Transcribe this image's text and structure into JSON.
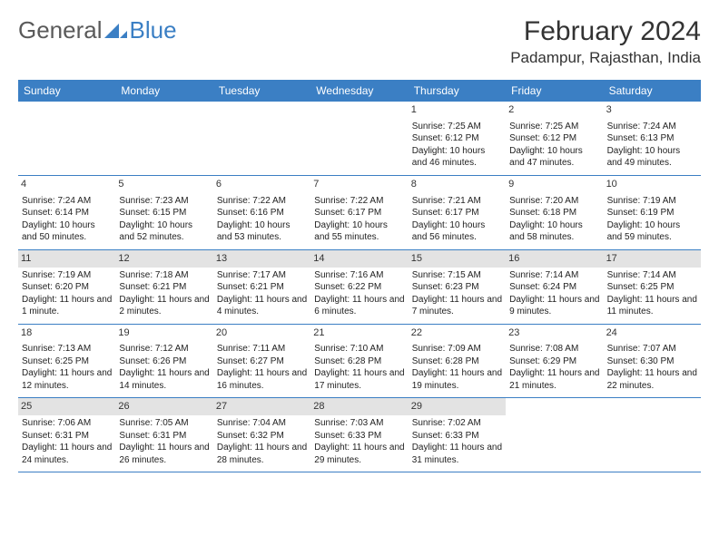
{
  "colors": {
    "header_bg": "#3b7fc4",
    "header_text": "#ffffff",
    "shaded_daynum_bg": "#e3e3e3",
    "border": "#3b7fc4",
    "body_text": "#222222",
    "logo_gray": "#5a5a5a",
    "logo_blue": "#3b7fc4"
  },
  "logo": {
    "general": "General",
    "blue": "Blue"
  },
  "title": "February 2024",
  "location": "Padampur, Rajasthan, India",
  "dayNames": [
    "Sunday",
    "Monday",
    "Tuesday",
    "Wednesday",
    "Thursday",
    "Friday",
    "Saturday"
  ],
  "weeks": [
    [
      null,
      null,
      null,
      null,
      {
        "n": 1,
        "sr": "7:25 AM",
        "ss": "6:12 PM",
        "dl": "10 hours and 46 minutes."
      },
      {
        "n": 2,
        "sr": "7:25 AM",
        "ss": "6:12 PM",
        "dl": "10 hours and 47 minutes."
      },
      {
        "n": 3,
        "sr": "7:24 AM",
        "ss": "6:13 PM",
        "dl": "10 hours and 49 minutes."
      }
    ],
    [
      {
        "n": 4,
        "sr": "7:24 AM",
        "ss": "6:14 PM",
        "dl": "10 hours and 50 minutes."
      },
      {
        "n": 5,
        "sr": "7:23 AM",
        "ss": "6:15 PM",
        "dl": "10 hours and 52 minutes."
      },
      {
        "n": 6,
        "sr": "7:22 AM",
        "ss": "6:16 PM",
        "dl": "10 hours and 53 minutes."
      },
      {
        "n": 7,
        "sr": "7:22 AM",
        "ss": "6:17 PM",
        "dl": "10 hours and 55 minutes."
      },
      {
        "n": 8,
        "sr": "7:21 AM",
        "ss": "6:17 PM",
        "dl": "10 hours and 56 minutes."
      },
      {
        "n": 9,
        "sr": "7:20 AM",
        "ss": "6:18 PM",
        "dl": "10 hours and 58 minutes."
      },
      {
        "n": 10,
        "sr": "7:19 AM",
        "ss": "6:19 PM",
        "dl": "10 hours and 59 minutes."
      }
    ],
    [
      {
        "n": 11,
        "sr": "7:19 AM",
        "ss": "6:20 PM",
        "dl": "11 hours and 1 minute."
      },
      {
        "n": 12,
        "sr": "7:18 AM",
        "ss": "6:21 PM",
        "dl": "11 hours and 2 minutes."
      },
      {
        "n": 13,
        "sr": "7:17 AM",
        "ss": "6:21 PM",
        "dl": "11 hours and 4 minutes."
      },
      {
        "n": 14,
        "sr": "7:16 AM",
        "ss": "6:22 PM",
        "dl": "11 hours and 6 minutes."
      },
      {
        "n": 15,
        "sr": "7:15 AM",
        "ss": "6:23 PM",
        "dl": "11 hours and 7 minutes."
      },
      {
        "n": 16,
        "sr": "7:14 AM",
        "ss": "6:24 PM",
        "dl": "11 hours and 9 minutes."
      },
      {
        "n": 17,
        "sr": "7:14 AM",
        "ss": "6:25 PM",
        "dl": "11 hours and 11 minutes."
      }
    ],
    [
      {
        "n": 18,
        "sr": "7:13 AM",
        "ss": "6:25 PM",
        "dl": "11 hours and 12 minutes."
      },
      {
        "n": 19,
        "sr": "7:12 AM",
        "ss": "6:26 PM",
        "dl": "11 hours and 14 minutes."
      },
      {
        "n": 20,
        "sr": "7:11 AM",
        "ss": "6:27 PM",
        "dl": "11 hours and 16 minutes."
      },
      {
        "n": 21,
        "sr": "7:10 AM",
        "ss": "6:28 PM",
        "dl": "11 hours and 17 minutes."
      },
      {
        "n": 22,
        "sr": "7:09 AM",
        "ss": "6:28 PM",
        "dl": "11 hours and 19 minutes."
      },
      {
        "n": 23,
        "sr": "7:08 AM",
        "ss": "6:29 PM",
        "dl": "11 hours and 21 minutes."
      },
      {
        "n": 24,
        "sr": "7:07 AM",
        "ss": "6:30 PM",
        "dl": "11 hours and 22 minutes."
      }
    ],
    [
      {
        "n": 25,
        "sr": "7:06 AM",
        "ss": "6:31 PM",
        "dl": "11 hours and 24 minutes."
      },
      {
        "n": 26,
        "sr": "7:05 AM",
        "ss": "6:31 PM",
        "dl": "11 hours and 26 minutes."
      },
      {
        "n": 27,
        "sr": "7:04 AM",
        "ss": "6:32 PM",
        "dl": "11 hours and 28 minutes."
      },
      {
        "n": 28,
        "sr": "7:03 AM",
        "ss": "6:33 PM",
        "dl": "11 hours and 29 minutes."
      },
      {
        "n": 29,
        "sr": "7:02 AM",
        "ss": "6:33 PM",
        "dl": "11 hours and 31 minutes."
      },
      null,
      null
    ]
  ],
  "labels": {
    "sunrise": "Sunrise:",
    "sunset": "Sunset:",
    "daylight": "Daylight:"
  },
  "shadedWeeks": [
    2,
    4
  ]
}
